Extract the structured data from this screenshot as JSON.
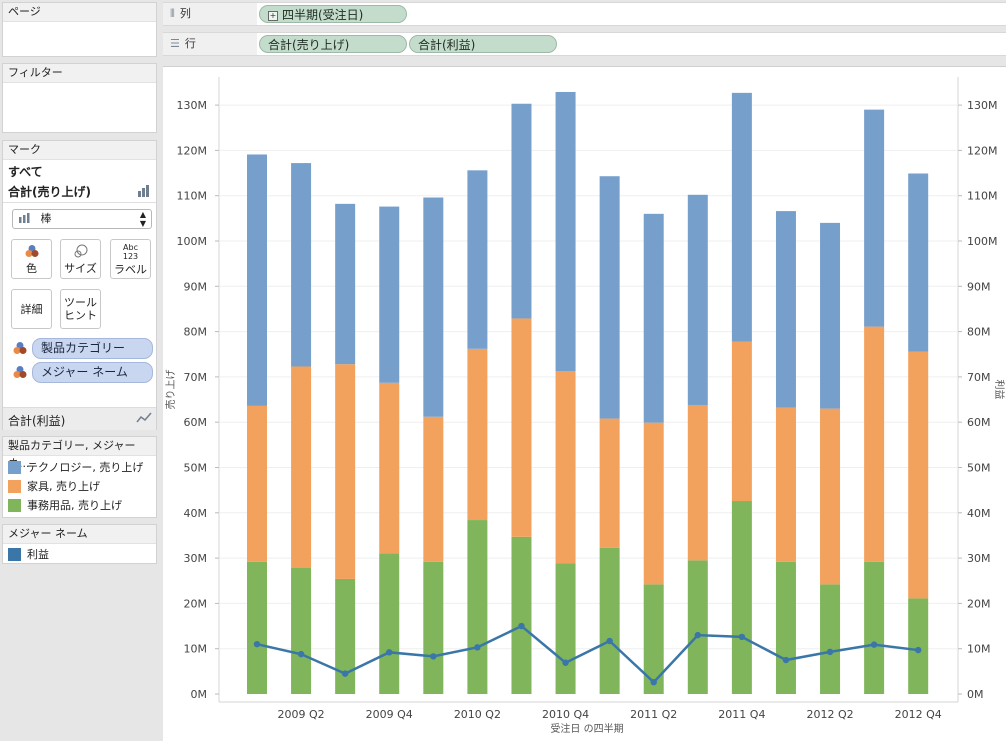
{
  "panels": {
    "pages_title": "ページ",
    "filters_title": "フィルター",
    "marks_title": "マーク"
  },
  "shelves": {
    "columns_label": "列",
    "rows_label": "行",
    "columns_pills": [
      "四半期(受注日)"
    ],
    "rows_pills": [
      "合計(売り上げ)",
      "合計(利益)"
    ]
  },
  "marks": {
    "all_label": "すべて",
    "sales_label": "合計(売り上げ)",
    "mark_type": "棒",
    "buttons": {
      "color": "色",
      "size": "サイズ",
      "label": "ラベル",
      "label_icon_line1": "Abc",
      "label_icon_line2": "123",
      "detail": "詳細",
      "tooltip_line1": "ツール",
      "tooltip_line2": "ヒント"
    },
    "fields": [
      "製品カテゴリー",
      "メジャー ネーム"
    ],
    "profit_label": "合計(利益)"
  },
  "legend1": {
    "title": "製品カテゴリー, メジャー ネ...",
    "items": [
      {
        "label": "テクノロジー, 売り上げ",
        "color": "#779fcc"
      },
      {
        "label": "家具, 売り上げ",
        "color": "#f2a25c"
      },
      {
        "label": "事務用品, 売り上げ",
        "color": "#80b55c"
      }
    ]
  },
  "legend2": {
    "title": "メジャー ネーム",
    "items": [
      {
        "label": "利益",
        "color": "#3a76a8"
      }
    ]
  },
  "chart_data": {
    "type": "bar",
    "stacked": true,
    "xlabel": "受注日 の四半期",
    "ylabel": "売り上げ",
    "y2label": "利益",
    "ylim": [
      0,
      140000000
    ],
    "y2lim": [
      0,
      140000000
    ],
    "yticks": [
      "0M",
      "10M",
      "20M",
      "30M",
      "40M",
      "50M",
      "60M",
      "70M",
      "80M",
      "90M",
      "100M",
      "110M",
      "120M",
      "130M"
    ],
    "categories": [
      "2009 Q1",
      "2009 Q2",
      "2009 Q3",
      "2009 Q4",
      "2010 Q1",
      "2010 Q2",
      "2010 Q3",
      "2010 Q4",
      "2011 Q1",
      "2011 Q2",
      "2011 Q3",
      "2011 Q4",
      "2012 Q1",
      "2012 Q2",
      "2012 Q3",
      "2012 Q4"
    ],
    "xtick_labels": [
      "",
      "2009 Q2",
      "",
      "2009 Q4",
      "",
      "2010 Q2",
      "",
      "2010 Q4",
      "",
      "2011 Q2",
      "",
      "2011 Q4",
      "",
      "2012 Q2",
      "",
      "2012 Q4"
    ],
    "series": [
      {
        "name": "事務用品, 売り上げ",
        "color": "#80b55c",
        "values": [
          29.2,
          27.9,
          25.4,
          31.0,
          29.2,
          38.4,
          34.7,
          28.8,
          32.3,
          24.2,
          29.5,
          42.6,
          29.2,
          24.2,
          29.2,
          21.1
        ]
      },
      {
        "name": "家具, 売り上げ",
        "color": "#f2a25c",
        "values": [
          34.4,
          44.4,
          47.4,
          37.7,
          32.0,
          37.8,
          48.2,
          42.5,
          28.5,
          35.7,
          34.3,
          35.2,
          34.0,
          38.8,
          51.9,
          54.5
        ]
      },
      {
        "name": "テクノロジー, 売り上げ",
        "color": "#779fcc",
        "values": [
          55.5,
          44.9,
          35.4,
          38.9,
          48.4,
          39.4,
          47.4,
          61.6,
          53.5,
          46.1,
          46.4,
          54.9,
          43.4,
          41.0,
          47.9,
          39.3
        ]
      }
    ],
    "line_series": {
      "name": "利益",
      "color": "#3a76a8",
      "values": [
        11.0,
        8.8,
        4.5,
        9.2,
        8.3,
        10.3,
        15.0,
        6.9,
        11.7,
        2.6,
        13.0,
        12.6,
        7.5,
        9.3,
        10.9,
        9.7
      ]
    },
    "unit_scale": 1000000
  }
}
